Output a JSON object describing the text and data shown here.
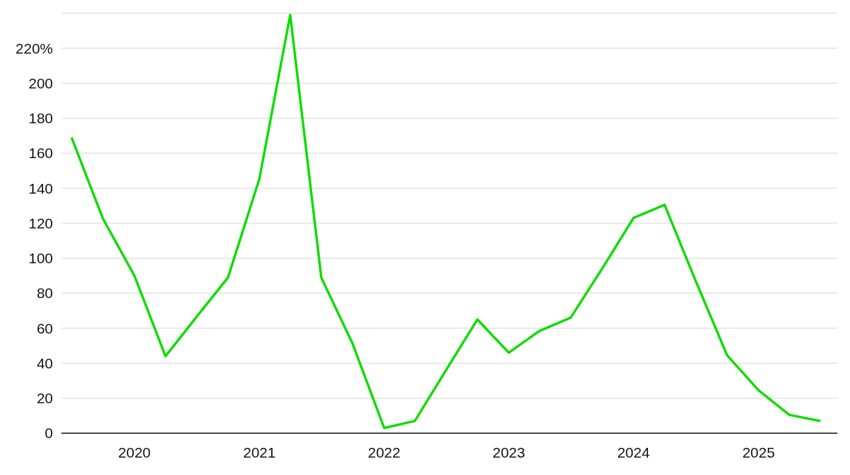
{
  "chart_data": {
    "type": "line",
    "x": [
      "2019-07",
      "2019-10",
      "2020-01",
      "2020-04",
      "2020-07",
      "2020-10",
      "2021-01",
      "2021-04",
      "2021-07",
      "2021-10",
      "2022-01",
      "2022-04",
      "2022-07",
      "2022-10",
      "2023-01",
      "2023-04",
      "2023-07",
      "2023-10",
      "2024-01",
      "2024-04",
      "2024-07",
      "2024-10",
      "2025-01",
      "2025-04",
      "2025-07"
    ],
    "series": [
      {
        "color": "#0fdc00",
        "values": [
          169,
          122.5,
          90,
          44,
          66.5,
          89,
          145.5,
          239,
          89,
          51,
          3,
          7,
          36,
          65,
          46,
          58.5,
          66,
          94,
          123,
          130.5,
          87,
          44.5,
          24.5,
          10.5,
          7
        ]
      }
    ],
    "xlim": [
      "2019-06-01",
      "2025-08-20"
    ],
    "xticks": [
      "2020",
      "2021",
      "2022",
      "2023",
      "2024",
      "2025"
    ],
    "ylim": [
      0,
      240
    ],
    "yticks": [
      0,
      20,
      40,
      60,
      80,
      100,
      120,
      140,
      160,
      180,
      200,
      {
        "value": 220,
        "label": "220%"
      }
    ],
    "grid": "y",
    "legend": false,
    "marker": "none",
    "line_style": "solid"
  }
}
